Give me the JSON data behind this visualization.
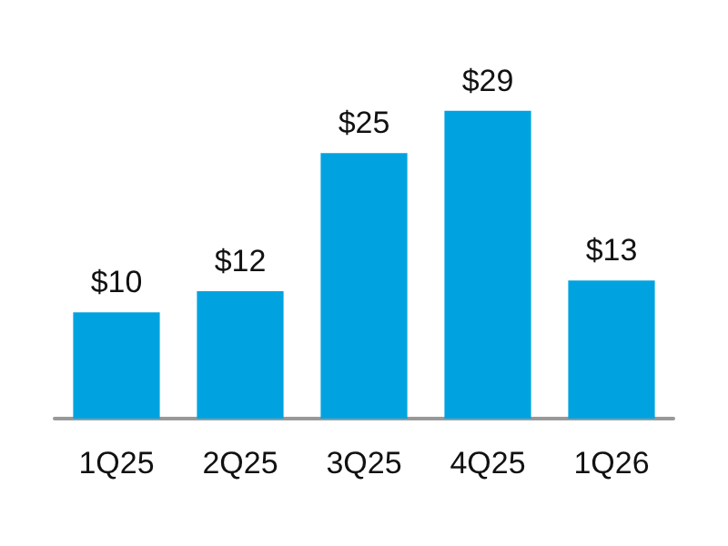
{
  "chart_data": {
    "type": "bar",
    "categories": [
      "1Q25",
      "2Q25",
      "3Q25",
      "4Q25",
      "1Q26"
    ],
    "values": [
      10,
      12,
      25,
      29,
      13
    ],
    "color": "#00a3e0",
    "value_labels": [
      "$10",
      "$12",
      "$25",
      "$29",
      "$13"
    ]
  }
}
